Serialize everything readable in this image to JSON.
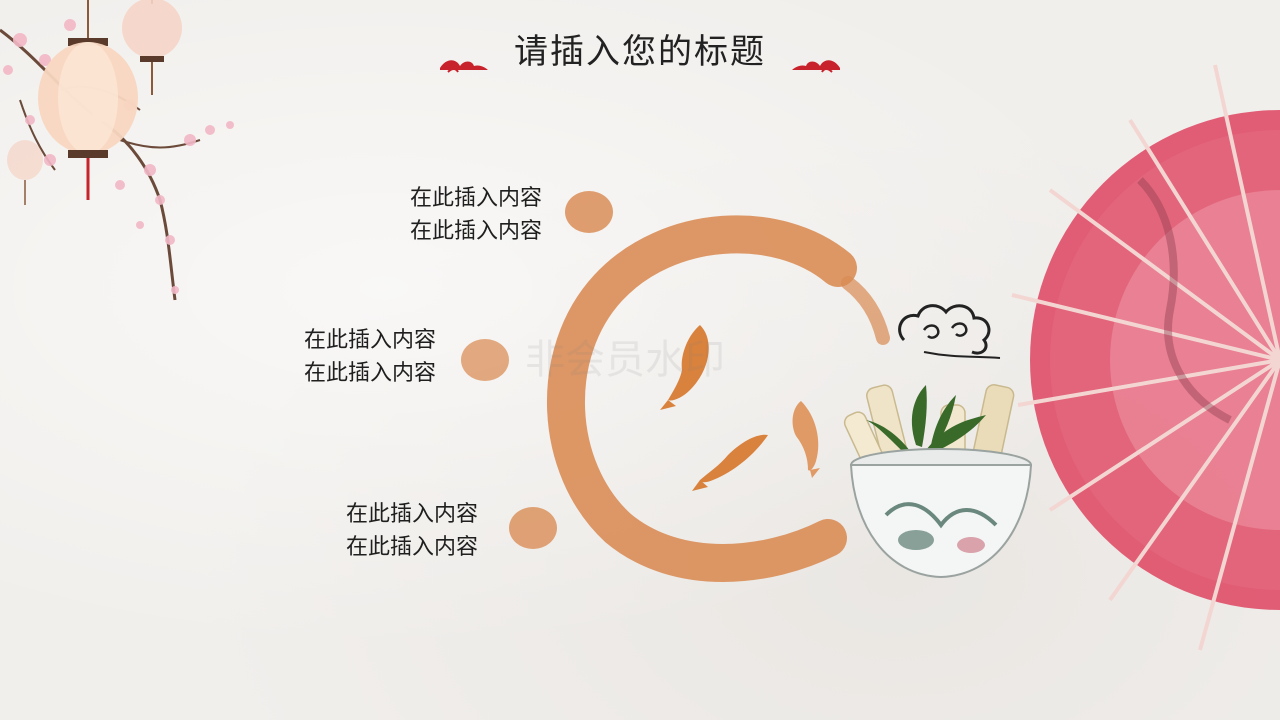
{
  "slide": {
    "title": "请插入您的标题",
    "watermark": "非会员水印",
    "items": [
      {
        "line1": "在此插入内容",
        "line2": "在此插入内容"
      },
      {
        "line1": "在此插入内容",
        "line2": "在此插入内容"
      },
      {
        "line1": "在此插入内容",
        "line2": "在此插入内容"
      }
    ]
  },
  "colors": {
    "ink_orange": "#d98a52",
    "accent_red": "#c8232c",
    "umbrella_pink": "#e0506a",
    "blossom_pink": "#f2b8c6"
  },
  "icons": [
    "cloud-ornament-left-icon",
    "cloud-ornament-right-icon",
    "koi-fish-icon",
    "auspicious-cloud-icon"
  ]
}
